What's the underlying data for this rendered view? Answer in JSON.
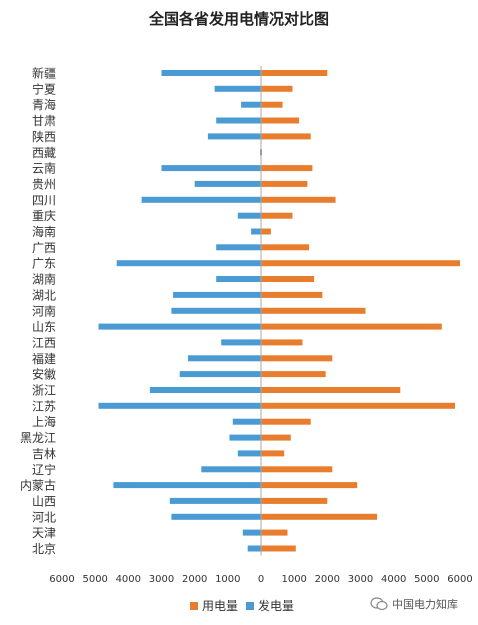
{
  "chart_data": {
    "type": "bar",
    "orientation": "horizontal",
    "title": "全国各省发用电情况对比图",
    "categories": [
      "新疆",
      "宁夏",
      "青海",
      "甘肃",
      "陕西",
      "西藏",
      "云南",
      "贵州",
      "四川",
      "重庆",
      "海南",
      "广西",
      "广东",
      "湖南",
      "湖北",
      "河南",
      "山东",
      "江西",
      "福建",
      "安徽",
      "浙江",
      "江苏",
      "上海",
      "黑龙江",
      "吉林",
      "辽宁",
      "内蒙古",
      "山西",
      "河北",
      "天津",
      "北京"
    ],
    "series": [
      {
        "name": "用电量",
        "color": "#e87e2d",
        "direction": "right",
        "values": [
          2000,
          950,
          650,
          1150,
          1500,
          20,
          1550,
          1400,
          2250,
          950,
          300,
          1450,
          6000,
          1600,
          1850,
          3150,
          5450,
          1250,
          2150,
          1950,
          4200,
          5850,
          1500,
          900,
          700,
          2150,
          2900,
          2000,
          3500,
          800,
          1050
        ]
      },
      {
        "name": "发电量",
        "color": "#4a9ad4",
        "direction": "left",
        "values": [
          3000,
          1400,
          600,
          1350,
          1600,
          20,
          3000,
          2000,
          3600,
          700,
          300,
          1350,
          4350,
          1350,
          2650,
          2700,
          4900,
          1200,
          2200,
          2450,
          3350,
          4900,
          850,
          950,
          700,
          1800,
          4450,
          2750,
          2700,
          550,
          400
        ]
      }
    ],
    "xlim": [
      -6000,
      6000
    ],
    "xticks": [
      -6000,
      -5000,
      -4000,
      -3000,
      -2000,
      -1000,
      0,
      1000,
      2000,
      3000,
      4000,
      5000,
      6000
    ],
    "xtick_labels": [
      "6000",
      "5000",
      "4000",
      "3000",
      "2000",
      "1000",
      "0",
      "1000",
      "2000",
      "3000",
      "4000",
      "5000",
      "6000"
    ],
    "legend_position": "bottom",
    "grid": false
  },
  "legend": [
    {
      "label": "用电量",
      "color": "#e87e2d"
    },
    {
      "label": "发电量",
      "color": "#4a9ad4"
    }
  ],
  "watermark": {
    "text": "中国电力知库"
  }
}
